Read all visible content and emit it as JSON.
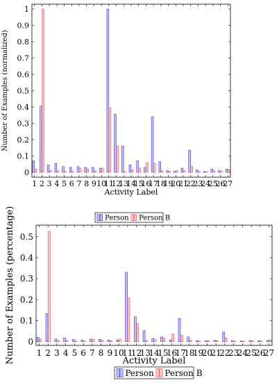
{
  "chart_data": [
    {
      "type": "bar",
      "categories": [
        "1",
        "2",
        "3",
        "4",
        "5",
        "6",
        "7",
        "8",
        "9",
        "10",
        "11",
        "12",
        "13",
        "14",
        "15",
        "16",
        "17",
        "18",
        "19",
        "20",
        "21",
        "22",
        "23",
        "24",
        "25",
        "26",
        "27"
      ],
      "series": [
        {
          "name": "Person A",
          "values": [
            0.07,
            0.405,
            0.045,
            0.055,
            0.035,
            0.03,
            0.035,
            0.03,
            0.03,
            0.025,
            1.0,
            0.355,
            0.16,
            0.045,
            0.07,
            0.03,
            0.34,
            0.065,
            0.01,
            0.005,
            0.025,
            0.135,
            0.015,
            0.005,
            0.02,
            0.01,
            0.02
          ]
        },
        {
          "name": "Person B",
          "values": [
            0.02,
            1.0,
            0.01,
            0.01,
            0.005,
            0.005,
            0.025,
            0.02,
            0.01,
            0.025,
            0.395,
            0.16,
            0.005,
            0.015,
            0.025,
            0.06,
            0.055,
            0.01,
            0.005,
            0.01,
            0.01,
            0.035,
            0.005,
            0.005,
            0.01,
            0.005,
            0.015
          ]
        }
      ],
      "title": "",
      "xlabel": "Activity Label",
      "ylabel": "Number of Examples (normalized)",
      "ylim": [
        -0.03,
        1.03
      ],
      "yticks": [
        0,
        0.1,
        0.2,
        0.3,
        0.4,
        0.5,
        0.6,
        0.7,
        0.8,
        0.9,
        1
      ],
      "ytick_labels": [
        "0",
        "0.1",
        "0.2",
        "0.3",
        "0.4",
        "0.5",
        "0.6",
        "0.7",
        "0.8",
        "0.9",
        "1"
      ],
      "grid": false,
      "legend_position": "bottom-center",
      "colors": {
        "Person A": "#4444ff",
        "Person B": "#ff5555"
      }
    },
    {
      "type": "bar",
      "categories": [
        "1",
        "2",
        "3",
        "4",
        "5",
        "6",
        "7",
        "8",
        "9",
        "10",
        "11",
        "12",
        "13",
        "14",
        "15",
        "16",
        "17",
        "18",
        "19",
        "20",
        "21",
        "22",
        "23",
        "24",
        "25",
        "26",
        "27"
      ],
      "series": [
        {
          "name": "Person A",
          "values": [
            0.02,
            0.133,
            0.012,
            0.018,
            0.01,
            0.008,
            0.012,
            0.01,
            0.008,
            0.008,
            0.33,
            0.118,
            0.052,
            0.015,
            0.022,
            0.008,
            0.11,
            0.022,
            0.004,
            0.003,
            0.006,
            0.045,
            0.005,
            0.003,
            0.005,
            0.004,
            0.006
          ]
        },
        {
          "name": "Person B",
          "values": [
            0.012,
            0.525,
            0.006,
            0.006,
            0.003,
            0.003,
            0.01,
            0.006,
            0.004,
            0.012,
            0.208,
            0.085,
            0.004,
            0.01,
            0.016,
            0.036,
            0.03,
            0.006,
            0.002,
            0.004,
            0.004,
            0.018,
            0.002,
            0.002,
            0.004,
            0.003,
            0.008
          ]
        }
      ],
      "title": "",
      "xlabel": "Activity Label",
      "ylabel": "Number of Examples (percentage)",
      "ylim": [
        -0.018,
        0.555
      ],
      "yticks": [
        0,
        0.1,
        0.2,
        0.3,
        0.4,
        0.5
      ],
      "ytick_labels": [
        "0",
        "0.1",
        "0.2",
        "0.3",
        "0.4",
        "0.5"
      ],
      "grid": false,
      "legend_position": "bottom-center",
      "colors": {
        "Person A": "#4444ff",
        "Person B": "#ff5555"
      }
    }
  ]
}
